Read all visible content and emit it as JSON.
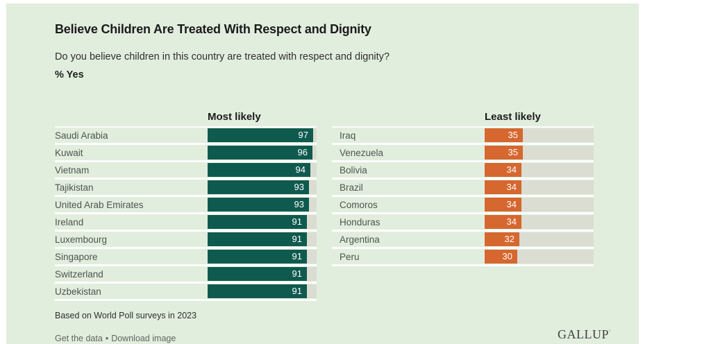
{
  "title": "Believe Children Are Treated With Respect and Dignity",
  "question": "Do you believe children in this country are treated with respect and dignity?",
  "metric_label": "% Yes",
  "chart_data": {
    "type": "bar",
    "orientation": "horizontal",
    "value_unit": "% Yes",
    "xlim": [
      0,
      100
    ],
    "groups": [
      {
        "label": "Most likely",
        "bar_color": "#0f5a4e",
        "rows": [
          {
            "country": "Saudi Arabia",
            "value": 97
          },
          {
            "country": "Kuwait",
            "value": 96
          },
          {
            "country": "Vietnam",
            "value": 94
          },
          {
            "country": "Tajikistan",
            "value": 93
          },
          {
            "country": "United Arab Emirates",
            "value": 93
          },
          {
            "country": "Ireland",
            "value": 91
          },
          {
            "country": "Luxembourg",
            "value": 91
          },
          {
            "country": "Singapore",
            "value": 91
          },
          {
            "country": "Switzerland",
            "value": 91
          },
          {
            "country": "Uzbekistan",
            "value": 91
          }
        ]
      },
      {
        "label": "Least likely",
        "bar_color": "#d6672f",
        "rows": [
          {
            "country": "Iraq",
            "value": 35
          },
          {
            "country": "Venezuela",
            "value": 35
          },
          {
            "country": "Bolivia",
            "value": 34
          },
          {
            "country": "Brazil",
            "value": 34
          },
          {
            "country": "Comoros",
            "value": 34
          },
          {
            "country": "Honduras",
            "value": 34
          },
          {
            "country": "Argentina",
            "value": 32
          },
          {
            "country": "Peru",
            "value": 30
          }
        ]
      }
    ],
    "track_color": "#dbddd2",
    "background_color": "#e1eede"
  },
  "footnote": "Based on World Poll surveys in 2023",
  "footer": {
    "link1": "Get the data",
    "separator": "•",
    "link2": "Download image"
  },
  "brand": {
    "name": "GALLUP",
    "mark": "’"
  }
}
